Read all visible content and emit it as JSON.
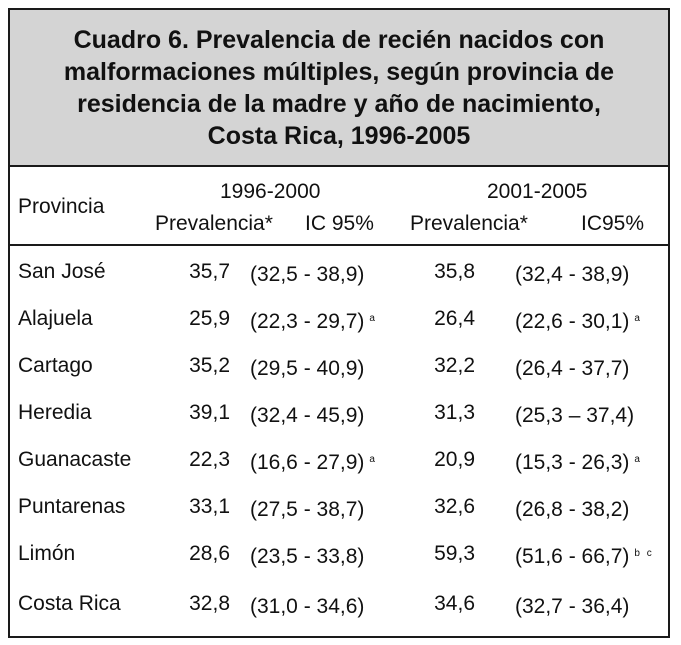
{
  "title_lines": [
    "Cuadro 6.  Prevalencia de recién nacidos con",
    "malformaciones múltiples, según provincia de",
    "residencia de la madre y año de nacimiento,",
    "Costa Rica, 1996-2005"
  ],
  "header": {
    "provincia": "Provincia",
    "period1": "1996-2000",
    "period2": "2001-2005",
    "prev1": "Prevalencia*",
    "ic1": "IC 95%",
    "prev2": "Prevalencia*",
    "ic2": "IC95%"
  },
  "rows": [
    {
      "provincia": "San José",
      "prev1": "35,7",
      "ic1": "(32,5 - 38,9)",
      "note1": "",
      "prev2": "35,8",
      "ic2": "(32,4  - 38,9)",
      "note2": ""
    },
    {
      "provincia": "Alajuela",
      "prev1": "25,9",
      "ic1": "(22,3 - 29,7)",
      "note1": "a",
      "prev2": "26,4",
      "ic2": "(22,6 - 30,1)",
      "note2": "a"
    },
    {
      "provincia": "Cartago",
      "prev1": "35,2",
      "ic1": "(29,5 - 40,9)",
      "note1": "",
      "prev2": "32,2",
      "ic2": "(26,4 - 37,7)",
      "note2": ""
    },
    {
      "provincia": "Heredia",
      "prev1": "39,1",
      "ic1": "(32,4 - 45,9)",
      "note1": "",
      "prev2": "31,3",
      "ic2": "(25,3 – 37,4)",
      "note2": ""
    },
    {
      "provincia": "Guanacaste",
      "prev1": "22,3",
      "ic1": "(16,6 - 27,9)",
      "note1": "a",
      "prev2": "20,9",
      "ic2": "(15,3 - 26,3)",
      "note2": "a"
    },
    {
      "provincia": "Puntarenas",
      "prev1": "33,1",
      "ic1": "(27,5 - 38,7)",
      "note1": "",
      "prev2": "32,6",
      "ic2": "(26,8 - 38,2)",
      "note2": ""
    },
    {
      "provincia": "Limón",
      "prev1": "28,6",
      "ic1": "(23,5 - 33,8)",
      "note1": "",
      "prev2": "59,3",
      "ic2": "(51,6 - 66,7)",
      "note2": "b c"
    },
    {
      "provincia": "Costa Rica",
      "prev1": "32,8",
      "ic1": "(31,0 - 34,6)",
      "note1": "",
      "prev2": "34,6",
      "ic2": "(32,7 - 36,4)",
      "note2": ""
    }
  ]
}
